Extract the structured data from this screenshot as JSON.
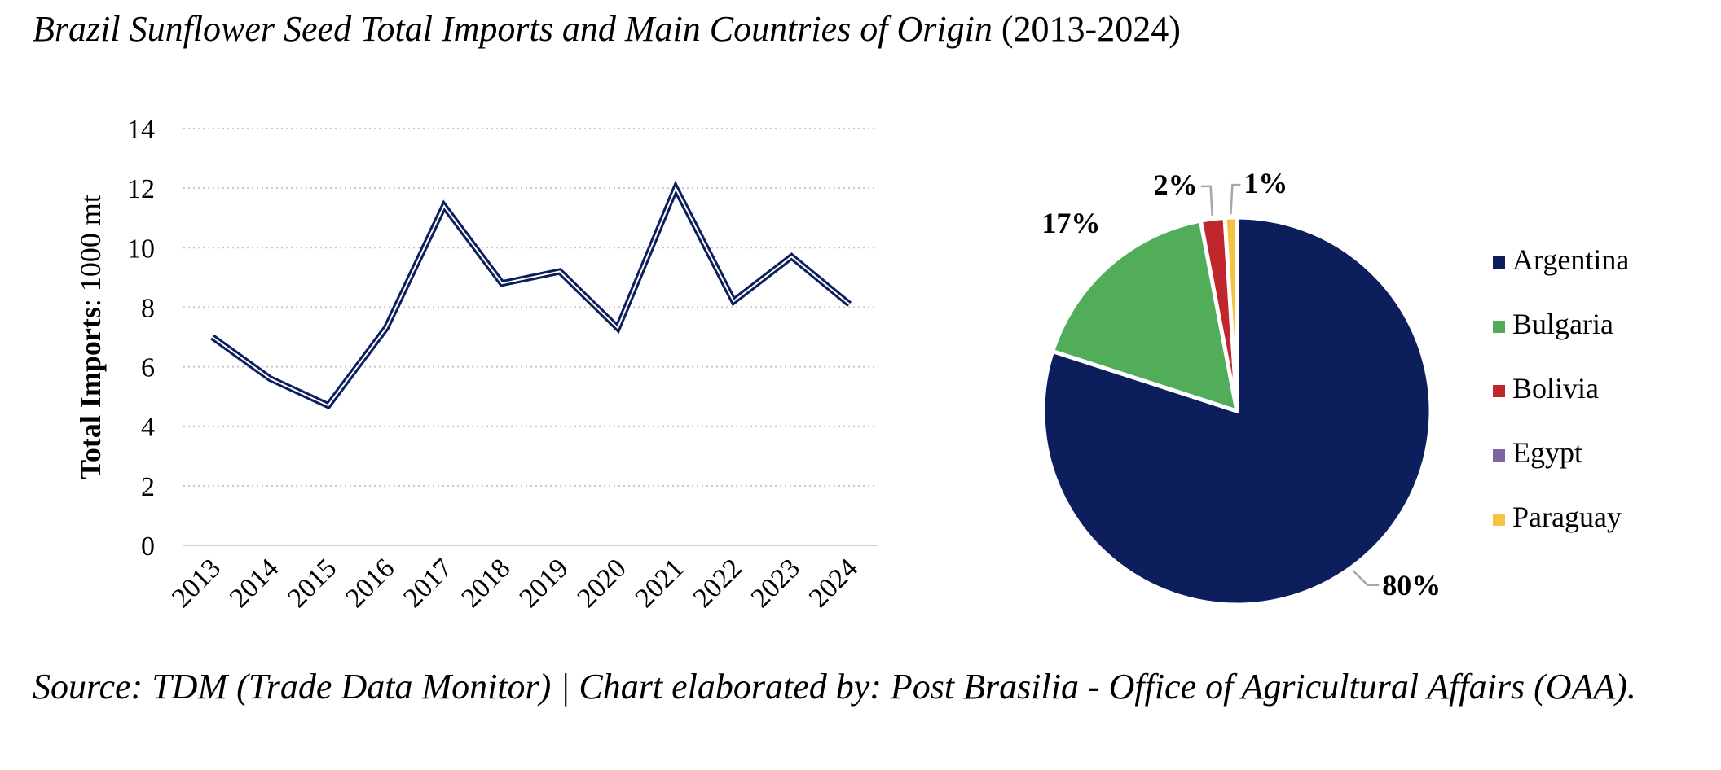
{
  "title_italic": "Brazil Sunflower Seed Total Imports and Main Countries of Origin",
  "title_rest": " (2013-2024)",
  "source": "Source: TDM (Trade Data Monitor) | Chart elaborated by: Post Brasilia - Office of Agricultural Affairs (OAA).",
  "chart_data": [
    {
      "type": "line",
      "ylabel_bold": "Total Imports",
      "ylabel_rest": ": 1000 mt",
      "ylim": [
        0,
        14
      ],
      "yticks": [
        0,
        2,
        4,
        6,
        8,
        10,
        12,
        14
      ],
      "grid": true,
      "x": [
        "2013",
        "2014",
        "2015",
        "2016",
        "2017",
        "2018",
        "2019",
        "2020",
        "2021",
        "2022",
        "2023",
        "2024"
      ],
      "series": [
        {
          "values": [
            7.0,
            5.6,
            4.7,
            7.3,
            11.4,
            8.8,
            9.2,
            7.3,
            12.0,
            8.2,
            9.7,
            8.1
          ],
          "color": "#0c1f5c"
        }
      ]
    },
    {
      "type": "pie",
      "slices": [
        {
          "label": "Argentina",
          "value": 80,
          "pct_label": "80%",
          "color": "#0c1f5c"
        },
        {
          "label": "Bulgaria",
          "value": 17,
          "pct_label": "17%",
          "color": "#52ad5a"
        },
        {
          "label": "Bolivia",
          "value": 2,
          "pct_label": "2%",
          "color": "#c0272d"
        },
        {
          "label": "Egypt",
          "value": 0,
          "pct_label": "",
          "color": "#8064a2"
        },
        {
          "label": "Paraguay",
          "value": 1,
          "pct_label": "1%",
          "color": "#f5c242"
        }
      ],
      "legend_position": "right"
    }
  ]
}
